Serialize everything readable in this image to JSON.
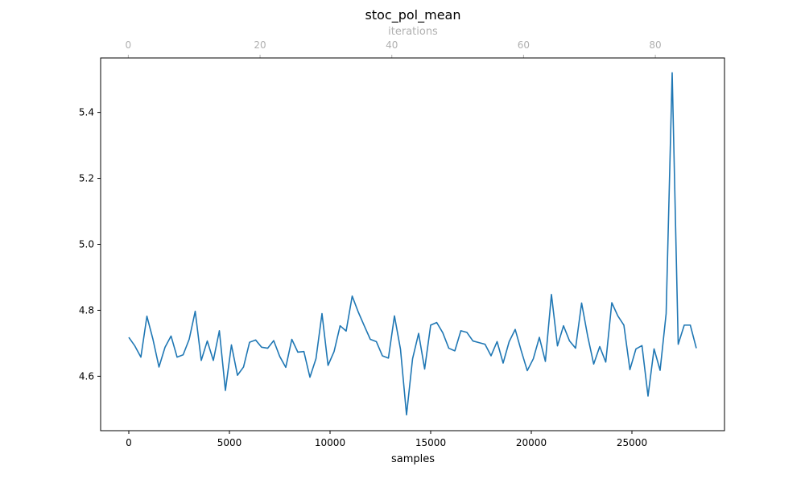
{
  "chart_data": {
    "type": "line",
    "title": "stoc_pol_mean",
    "xlabel": "samples",
    "ylabel": "",
    "top_xlabel": "iterations",
    "xlim": [
      -1400,
      29600
    ],
    "ylim": [
      4.435,
      5.565
    ],
    "top_xlim": [
      -4.2,
      90.5
    ],
    "x_ticks": [
      0,
      5000,
      10000,
      15000,
      20000,
      25000
    ],
    "y_ticks": [
      4.6,
      4.8,
      5.0,
      5.2,
      5.4
    ],
    "top_x_ticks": [
      0,
      20,
      40,
      60,
      80
    ],
    "grid": false,
    "colors": {
      "line": "#1f77b4",
      "top_axis": "#b0b0b0"
    },
    "series": [
      {
        "x": [
          0,
          300,
          600,
          900,
          1200,
          1500,
          1800,
          2100,
          2400,
          2700,
          3000,
          3300,
          3600,
          3900,
          4200,
          4500,
          4800,
          5100,
          5400,
          5700,
          6000,
          6300,
          6600,
          6900,
          7200,
          7500,
          7800,
          8100,
          8400,
          8700,
          9000,
          9300,
          9600,
          9900,
          10200,
          10500,
          10800,
          11100,
          11400,
          11700,
          12000,
          12300,
          12600,
          12900,
          13200,
          13500,
          13800,
          14100,
          14400,
          14700,
          15000,
          15300,
          15600,
          15900,
          16200,
          16500,
          16800,
          17100,
          17400,
          17700,
          18000,
          18300,
          18600,
          18900,
          19200,
          19500,
          19800,
          20100,
          20400,
          20700,
          21000,
          21300,
          21600,
          21900,
          22200,
          22500,
          22800,
          23100,
          23400,
          23700,
          24000,
          24300,
          24600,
          24900,
          25200,
          25500,
          25800,
          26100,
          26400,
          26700,
          27000,
          27300,
          27600,
          27900,
          28200
        ],
        "values": [
          4.718,
          4.692,
          4.658,
          4.782,
          4.712,
          4.628,
          4.688,
          4.722,
          4.658,
          4.665,
          4.712,
          4.797,
          4.648,
          4.707,
          4.648,
          4.738,
          4.557,
          4.695,
          4.603,
          4.628,
          4.703,
          4.71,
          4.688,
          4.685,
          4.708,
          4.66,
          4.627,
          4.712,
          4.673,
          4.675,
          4.597,
          4.653,
          4.79,
          4.633,
          4.675,
          4.753,
          4.737,
          4.843,
          4.795,
          4.753,
          4.712,
          4.705,
          4.662,
          4.655,
          4.783,
          4.682,
          4.483,
          4.653,
          4.73,
          4.622,
          4.755,
          4.763,
          4.732,
          4.685,
          4.677,
          4.738,
          4.733,
          4.707,
          4.702,
          4.697,
          4.662,
          4.705,
          4.64,
          4.705,
          4.742,
          4.677,
          4.617,
          4.653,
          4.718,
          4.645,
          4.848,
          4.692,
          4.753,
          4.707,
          4.685,
          4.822,
          4.722,
          4.637,
          4.69,
          4.643,
          4.823,
          4.783,
          4.755,
          4.62,
          4.683,
          4.693,
          4.54,
          4.683,
          4.618,
          4.79,
          5.52,
          4.697,
          4.755,
          4.755,
          4.685
        ]
      }
    ]
  }
}
